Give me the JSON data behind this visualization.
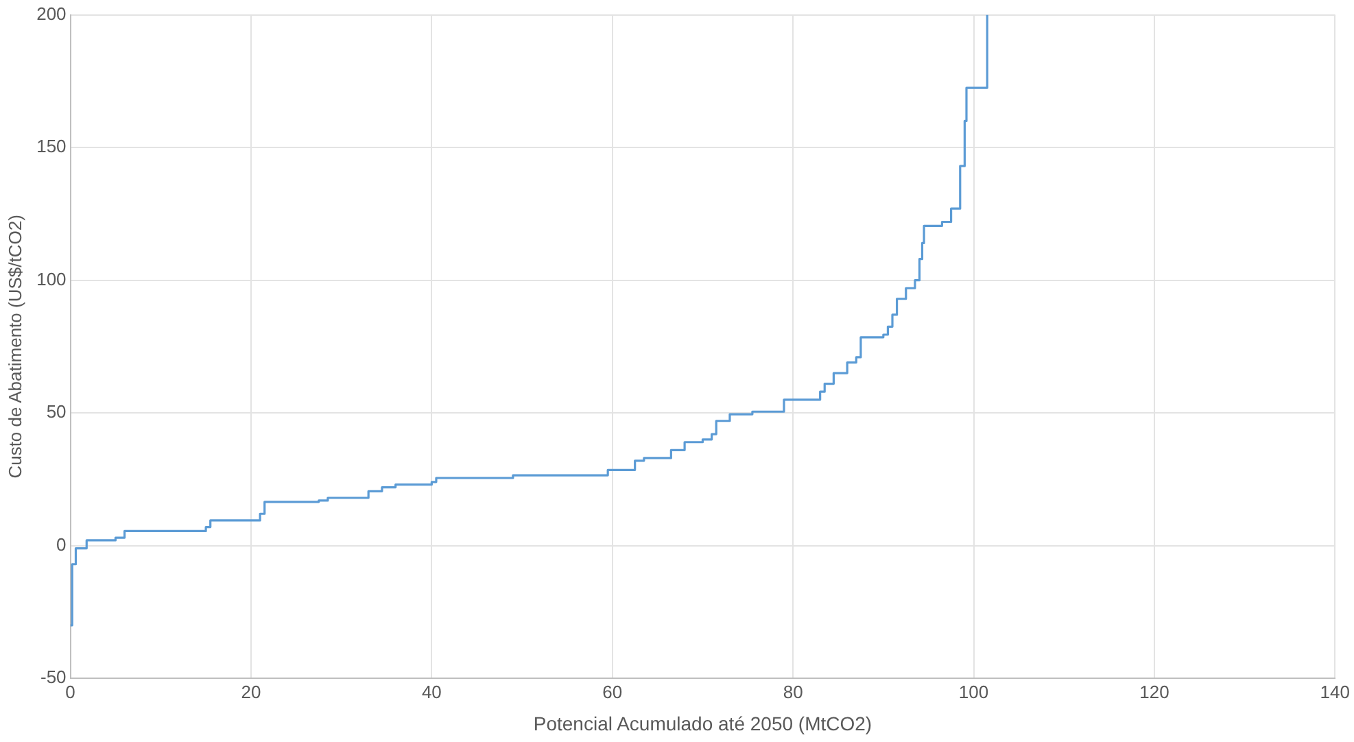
{
  "chart_data": {
    "type": "step",
    "xlabel": "Potencial Acumulado até 2050 (MtCO2)",
    "ylabel": "Custo de Abatimento (US$/tCO2)",
    "xlim": [
      0,
      140
    ],
    "xticks": [
      0,
      20,
      40,
      60,
      80,
      100,
      120,
      140
    ],
    "ylim": [
      -50,
      200
    ],
    "yticks": [
      -50,
      0,
      50,
      100,
      150,
      200
    ],
    "grid": true,
    "legend": false,
    "marker": "none",
    "series": [
      {
        "color": "#5b9bd5",
        "x": [
          0,
          0.2,
          0.6,
          1.8,
          5,
          6,
          15,
          15.5,
          21,
          21.5,
          27.5,
          28.5,
          33,
          34.5,
          36,
          40,
          40.5,
          49,
          59.5,
          62.5,
          63.5,
          66.5,
          68,
          70,
          71,
          71.5,
          73,
          75.5,
          79,
          83,
          83.5,
          84.5,
          86,
          87,
          87.5,
          90,
          90.5,
          91,
          91.5,
          92.5,
          93.5,
          94,
          94.3,
          94.5,
          96.5,
          97.5,
          98.5,
          99,
          99.2,
          101.5
        ],
        "values": [
          -30,
          -7,
          -1,
          2,
          3,
          5.5,
          7,
          9.5,
          12,
          16.5,
          17,
          18,
          20.5,
          22,
          23,
          24,
          25.5,
          26.5,
          28.5,
          32,
          33,
          36,
          39,
          40,
          42,
          47,
          49.5,
          50.5,
          55,
          58,
          61,
          65,
          69,
          71,
          78.5,
          79.5,
          82.5,
          87,
          93,
          97,
          100,
          108,
          114,
          120.5,
          122,
          127,
          143,
          160,
          172.5,
          200
        ]
      }
    ]
  }
}
